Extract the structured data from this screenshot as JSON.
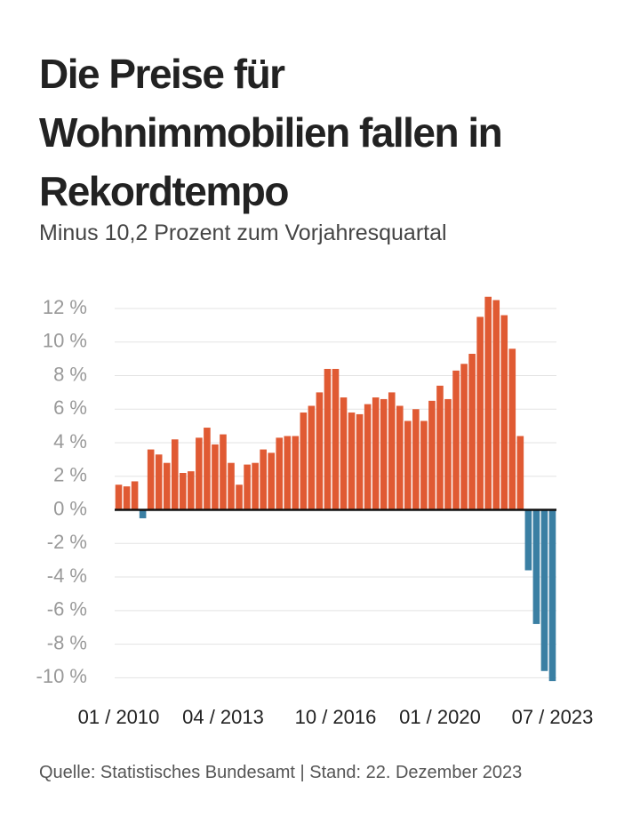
{
  "chart_data": {
    "type": "bar",
    "title": "Die Preise für Wohnimmobilien fallen in Rekordtempo",
    "subtitle": "Minus 10,2 Prozent zum Vorjahresquartal",
    "source": "Quelle: Statistisches Bundesamt | Stand: 22. Dezember 2023",
    "categories": [
      "01 / 2010",
      null,
      null,
      null,
      null,
      null,
      null,
      null,
      null,
      null,
      null,
      null,
      null,
      "04 / 2013",
      null,
      null,
      null,
      null,
      null,
      null,
      null,
      null,
      null,
      null,
      null,
      null,
      null,
      "10 / 2016",
      null,
      null,
      null,
      null,
      null,
      null,
      null,
      null,
      null,
      null,
      null,
      null,
      "01 / 2020",
      null,
      null,
      null,
      null,
      null,
      null,
      null,
      null,
      null,
      null,
      null,
      null,
      null,
      "07 / 2023"
    ],
    "values": [
      1.5,
      1.4,
      1.7,
      -0.5,
      3.6,
      3.3,
      2.8,
      4.2,
      2.2,
      2.3,
      4.3,
      4.9,
      3.9,
      4.5,
      2.8,
      1.5,
      2.7,
      2.8,
      3.6,
      3.4,
      4.3,
      4.4,
      4.4,
      5.8,
      6.2,
      7.0,
      8.4,
      8.4,
      6.7,
      5.8,
      5.7,
      6.3,
      6.7,
      6.6,
      7.0,
      6.2,
      5.3,
      6.0,
      5.3,
      6.5,
      7.4,
      6.6,
      8.3,
      8.7,
      9.3,
      11.5,
      12.7,
      12.5,
      11.6,
      9.6,
      4.4,
      -3.6,
      -6.8,
      -9.6,
      -10.2
    ],
    "positive_color": "#e05a33",
    "negative_color": "#3a7fa3",
    "ylim": [
      -10.3,
      12.9
    ],
    "yticks": [
      {
        "value": -10,
        "label": "-10 %"
      },
      {
        "value": -8,
        "label": "-8 %"
      },
      {
        "value": -6,
        "label": "-6 %"
      },
      {
        "value": -4,
        "label": "-4 %"
      },
      {
        "value": -2,
        "label": "-2 %"
      },
      {
        "value": 0,
        "label": "0 %"
      },
      {
        "value": 2,
        "label": "2 %"
      },
      {
        "value": 4,
        "label": "4 %"
      },
      {
        "value": 6,
        "label": "6 %"
      },
      {
        "value": 8,
        "label": "8 %"
      },
      {
        "value": 10,
        "label": "10 %"
      },
      {
        "value": 12,
        "label": "12 %"
      }
    ],
    "grid": true
  }
}
